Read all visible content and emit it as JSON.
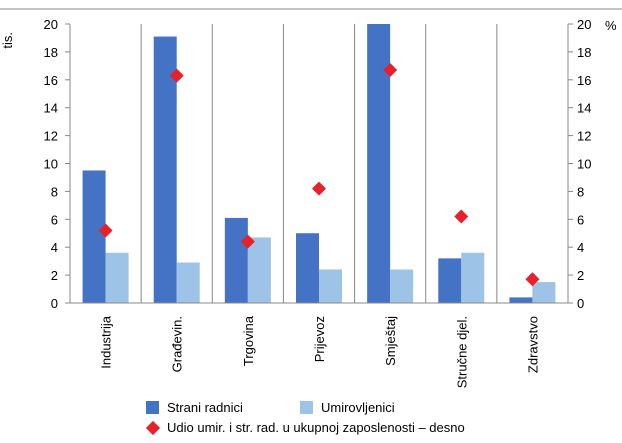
{
  "chart_data": {
    "type": "bar",
    "categories": [
      "Industrija",
      "Građevin.",
      "Trgovina",
      "Prijevoz",
      "Smještaj",
      "Stručne djel.",
      "Zdravstvo"
    ],
    "series": [
      {
        "name": "Strani radnici",
        "axis": "left",
        "type": "bar",
        "color": "#4472c4",
        "values": [
          9.5,
          19.1,
          6.1,
          5.0,
          20.0,
          3.2,
          0.4
        ]
      },
      {
        "name": "Umirovljenici",
        "axis": "left",
        "type": "bar",
        "color": "#9dc3e6",
        "values": [
          3.6,
          2.9,
          4.7,
          2.4,
          2.4,
          3.6,
          1.5
        ]
      },
      {
        "name": "Udio umir. i str. rad. u ukupnoj zaposlenosti – desno",
        "axis": "right",
        "type": "marker",
        "color": "#e8202a",
        "values": [
          5.2,
          16.3,
          4.4,
          8.2,
          16.7,
          6.2,
          1.7
        ]
      }
    ],
    "left_axis": {
      "unit_label": "tis.",
      "ylim": [
        0,
        20
      ],
      "ticks": [
        "0",
        "2",
        "4",
        "6",
        "8",
        "10",
        "12",
        "14",
        "16",
        "18",
        "20"
      ]
    },
    "right_axis": {
      "unit_label": "%",
      "ylim": [
        0,
        20
      ],
      "ticks": [
        "0",
        "2",
        "4",
        "6",
        "8",
        "10",
        "12",
        "14",
        "16",
        "18",
        "20"
      ]
    },
    "grid": false,
    "legend_position": "bottom"
  }
}
